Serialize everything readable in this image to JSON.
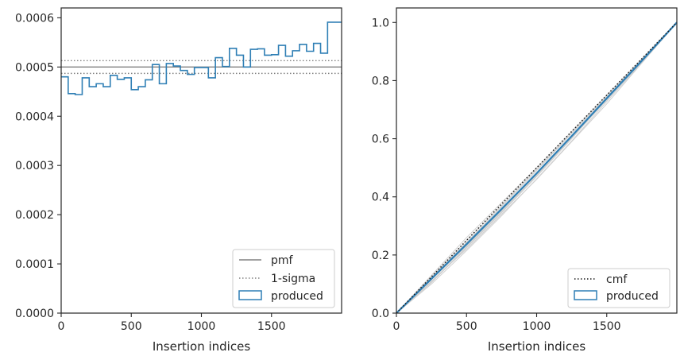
{
  "chart_data": [
    {
      "type": "line",
      "xlabel": "Insertion indices",
      "ylabel": "",
      "xlim": [
        0,
        2000
      ],
      "ylim": [
        0,
        0.00062
      ],
      "x_ticks": [
        "0",
        "500",
        "1000",
        "1500"
      ],
      "y_ticks": [
        "0.0000",
        "0.0001",
        "0.0002",
        "0.0003",
        "0.0004",
        "0.0005",
        "0.0006"
      ],
      "legend_position": "bottom-right",
      "pmf": 0.0005,
      "sigma_band": [
        0.000487,
        0.000513
      ],
      "series": [
        {
          "name": "produced",
          "kind": "step-histogram",
          "bin_width": 50,
          "values": [
            0.00048,
            0.000446,
            0.000444,
            0.000478,
            0.00046,
            0.000466,
            0.00046,
            0.000483,
            0.000475,
            0.000478,
            0.000454,
            0.00046,
            0.000474,
            0.000505,
            0.000466,
            0.000507,
            0.000502,
            0.000493,
            0.000485,
            0.000499,
            0.000499,
            0.000478,
            0.000519,
            0.000501,
            0.000538,
            0.000524,
            0.0005,
            0.000536,
            0.000537,
            0.000524,
            0.000525,
            0.000544,
            0.000522,
            0.000533,
            0.000546,
            0.000532,
            0.000548,
            0.000528,
            0.000591,
            0.000591
          ]
        }
      ],
      "colors": {
        "produced": "#2f7fb5",
        "pmf": "#808080",
        "sigma": "#808080"
      },
      "legend": [
        "pmf",
        "1-sigma",
        "produced"
      ]
    },
    {
      "type": "line",
      "xlabel": "Insertion indices",
      "ylabel": "",
      "xlim": [
        0,
        2000
      ],
      "ylim": [
        0,
        1.05
      ],
      "x_ticks": [
        "0",
        "500",
        "1000",
        "1500"
      ],
      "y_ticks": [
        "0.0",
        "0.2",
        "0.4",
        "0.6",
        "0.8",
        "1.0"
      ],
      "legend_position": "bottom-right",
      "series": [
        {
          "name": "cmf",
          "x": [
            0,
            2000
          ],
          "y": [
            0,
            1
          ]
        },
        {
          "name": "produced",
          "x": [
            0,
            250,
            500,
            750,
            1000,
            1250,
            1500,
            1750,
            2000
          ],
          "y": [
            0,
            0.118,
            0.237,
            0.358,
            0.481,
            0.609,
            0.739,
            0.868,
            1.0
          ]
        }
      ],
      "gray_curves": [
        [
          0,
          0.12,
          0.24,
          0.36,
          0.48,
          0.61,
          0.74,
          0.87,
          1.0
        ],
        [
          0,
          0.11,
          0.22,
          0.34,
          0.46,
          0.59,
          0.72,
          0.86,
          1.0
        ],
        [
          0,
          0.125,
          0.25,
          0.37,
          0.495,
          0.62,
          0.75,
          0.875,
          1.0
        ],
        [
          0,
          0.105,
          0.225,
          0.345,
          0.47,
          0.6,
          0.735,
          0.865,
          1.0
        ],
        [
          0,
          0.115,
          0.232,
          0.352,
          0.475,
          0.606,
          0.738,
          0.868,
          1.0
        ],
        [
          0,
          0.13,
          0.26,
          0.38,
          0.5,
          0.625,
          0.75,
          0.875,
          1.0
        ],
        [
          0,
          0.1,
          0.215,
          0.335,
          0.462,
          0.592,
          0.728,
          0.862,
          1.0
        ],
        [
          0,
          0.122,
          0.243,
          0.366,
          0.49,
          0.618,
          0.745,
          0.872,
          1.0
        ],
        [
          0,
          0.108,
          0.228,
          0.348,
          0.472,
          0.603,
          0.733,
          0.866,
          1.0
        ],
        [
          0,
          0.118,
          0.236,
          0.355,
          0.478,
          0.605,
          0.737,
          0.869,
          1.0
        ]
      ],
      "colors": {
        "produced": "#2f7fb5",
        "cmf": "#1a1a1a",
        "gray": "#d0d0d0"
      },
      "legend": [
        "cmf",
        "produced"
      ]
    }
  ]
}
